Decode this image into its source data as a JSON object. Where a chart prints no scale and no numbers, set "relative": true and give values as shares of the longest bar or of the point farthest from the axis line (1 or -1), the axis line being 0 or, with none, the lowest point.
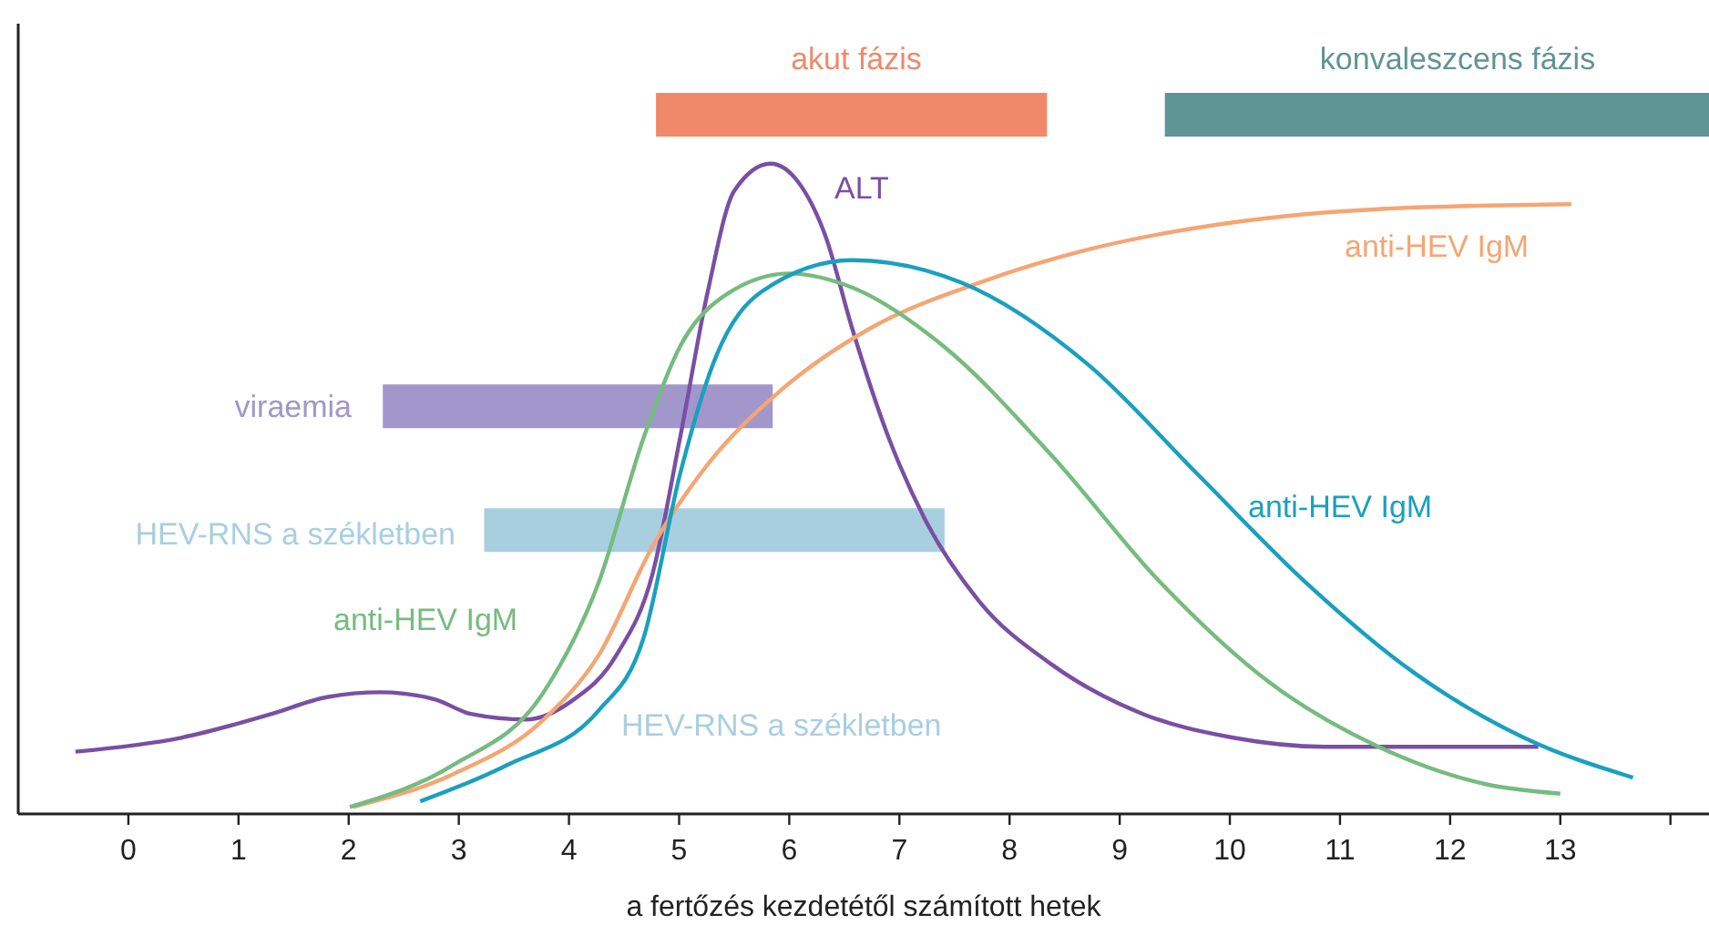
{
  "chart_data": {
    "type": "line",
    "relative": true,
    "xlabel": "a fertőzés kezdetétől számított hetek",
    "xlim": [
      -1,
      14.35
    ],
    "xticks": [
      0,
      1,
      2,
      3,
      4,
      5,
      6,
      7,
      8,
      9,
      10,
      11,
      12,
      13,
      {
        "value": 14,
        "label": null
      }
    ],
    "tick_labels": "x",
    "grid": false,
    "marker": "none",
    "annotations": [
      "HEV-RNS a székletben"
    ],
    "series": [
      {
        "name": "akut fázis",
        "color": "#f0896a",
        "x": [
          4.79,
          8.34
        ],
        "values": [
          1,
          1
        ]
      },
      {
        "name": "konvaleszcens fázis",
        "color": "#5f9594",
        "x": [
          9.41,
          14.35
        ],
        "values": [
          1,
          1
        ]
      },
      {
        "name": "viraemia",
        "color": "#a197cb",
        "x": [
          2.31,
          5.85
        ],
        "values": [
          0.583,
          0.583
        ]
      },
      {
        "name": "HEV-RNS a székletben",
        "color": "#a8cfe0",
        "x": [
          3.23,
          7.41
        ],
        "values": [
          0.406,
          0.406
        ]
      },
      {
        "name": "ALT",
        "color": "#7a4fa3",
        "x": [
          -0.48,
          0.48,
          1.3,
          1.8,
          2.29,
          2.78,
          3.11,
          3.61,
          4.02,
          4.43,
          4.76,
          5.01,
          5.26,
          5.5,
          5.83,
          6.08,
          6.33,
          6.57,
          6.9,
          7.23,
          7.72,
          8.38,
          9.21,
          10.03,
          10.86,
          11.85,
          12.8
        ],
        "values": [
          0.089,
          0.109,
          0.143,
          0.167,
          0.174,
          0.164,
          0.143,
          0.135,
          0.161,
          0.227,
          0.344,
          0.539,
          0.747,
          0.891,
          0.93,
          0.904,
          0.826,
          0.695,
          0.539,
          0.422,
          0.305,
          0.214,
          0.143,
          0.109,
          0.096,
          0.096,
          0.096
        ]
      },
      {
        "name": "anti-HEV IgM",
        "color": "#f4a673",
        "x": [
          2.04,
          2.95,
          3.77,
          4.27,
          4.76,
          5.26,
          5.91,
          6.74,
          7.73,
          8.71,
          10.03,
          11.35,
          13.1
        ],
        "values": [
          0.01,
          0.057,
          0.135,
          0.227,
          0.383,
          0.5,
          0.604,
          0.695,
          0.76,
          0.807,
          0.846,
          0.865,
          0.872
        ]
      },
      {
        "name": "anti-HEV IgM",
        "color": "#76bb7f",
        "x": [
          2.01,
          2.95,
          3.77,
          4.27,
          4.68,
          5.01,
          5.42,
          6.0,
          6.57,
          7.4,
          8.38,
          9.37,
          10.36,
          11.35,
          12.34,
          13.0
        ],
        "values": [
          0.01,
          0.07,
          0.174,
          0.331,
          0.539,
          0.669,
          0.742,
          0.773,
          0.753,
          0.669,
          0.513,
          0.331,
          0.188,
          0.096,
          0.042,
          0.029
        ]
      },
      {
        "name": "anti-HEV IgM",
        "color": "#1aa0bf",
        "x": [
          2.65,
          3.44,
          4.27,
          4.68,
          5.01,
          5.34,
          5.75,
          6.57,
          7.56,
          8.71,
          9.7,
          10.69,
          11.68,
          12.67,
          13.66
        ],
        "values": [
          0.018,
          0.07,
          0.148,
          0.253,
          0.487,
          0.656,
          0.747,
          0.792,
          0.76,
          0.643,
          0.487,
          0.331,
          0.201,
          0.109,
          0.052
        ]
      }
    ]
  }
}
